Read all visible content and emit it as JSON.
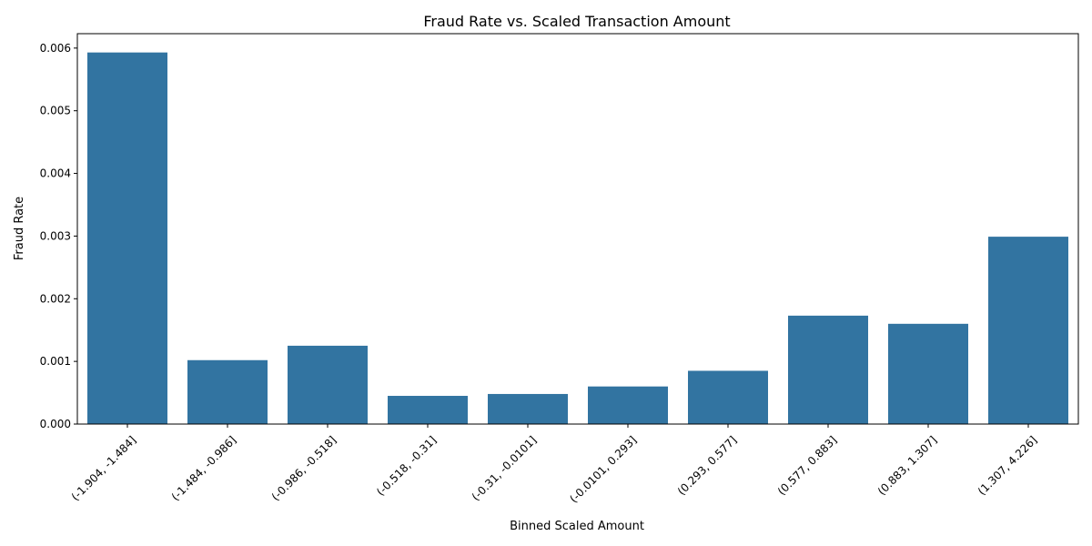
{
  "chart_data": {
    "type": "bar",
    "title": "Fraud Rate vs. Scaled Transaction Amount",
    "xlabel": "Binned Scaled Amount",
    "ylabel": "Fraud Rate",
    "categories": [
      "(-1.904, -1.484]",
      "(-1.484, -0.986]",
      "(-0.986, -0.518]",
      "(-0.518, -0.31]",
      "(-0.31, -0.0101]",
      "(-0.0101, 0.293]",
      "(0.293, 0.577]",
      "(0.577, 0.883]",
      "(0.883, 1.307]",
      "(1.307, 4.226]"
    ],
    "values": [
      0.00593,
      0.00102,
      0.00125,
      0.00045,
      0.00048,
      0.0006,
      0.00085,
      0.00173,
      0.0016,
      0.00299
    ],
    "ylim": [
      0,
      0.00623
    ],
    "yticks": [
      "0.000",
      "0.001",
      "0.002",
      "0.003",
      "0.004",
      "0.005",
      "0.006"
    ],
    "ytick_values": [
      0,
      0.001,
      0.002,
      0.003,
      0.004,
      0.005,
      0.006
    ],
    "bar_color": "#3274a1",
    "grid": false,
    "legend": "none"
  }
}
